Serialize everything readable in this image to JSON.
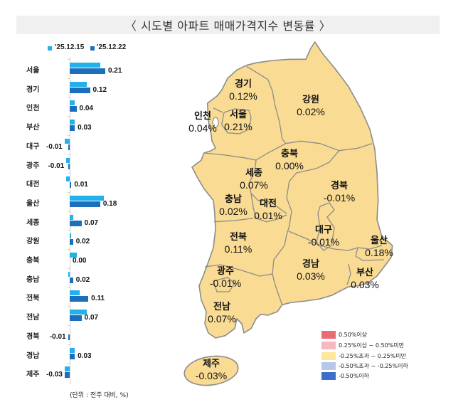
{
  "header": {
    "title": "〈 시도별 아파트 매매가격지수 변동률 〉"
  },
  "chart_data": {
    "type": "bar",
    "orientation": "horizontal",
    "title": "시도별 아파트 매매가격지수 변동률",
    "categories": [
      "서울",
      "경기",
      "인천",
      "부산",
      "대구",
      "광주",
      "대전",
      "울산",
      "세종",
      "강원",
      "충북",
      "충남",
      "전북",
      "전남",
      "경북",
      "경남",
      "제주"
    ],
    "series": [
      {
        "name": "'25.12.15",
        "color": "#22b1ea",
        "values": [
          0.18,
          0.1,
          0.03,
          0.03,
          -0.03,
          -0.02,
          -0.02,
          0.2,
          0.02,
          0.01,
          0.04,
          -0.01,
          0.06,
          0.1,
          0.0,
          0.03,
          -0.03
        ]
      },
      {
        "name": "'25.12.22",
        "color": "#1b6fbd",
        "values": [
          0.21,
          0.12,
          0.04,
          0.03,
          -0.01,
          -0.01,
          0.01,
          0.18,
          0.07,
          0.02,
          0.0,
          0.02,
          0.11,
          0.07,
          -0.01,
          0.03,
          -0.03
        ]
      }
    ],
    "value_labels": [
      "0.21",
      "0.12",
      "0.04",
      "0.03",
      "-0.01",
      "-0.01",
      "0.01",
      "0.18",
      "0.07",
      "0.02",
      "0.00",
      "0.02",
      "0.11",
      "0.07",
      "-0.01",
      "0.03",
      "-0.03"
    ],
    "xlabel": "",
    "ylabel": "",
    "xlim": [
      -0.05,
      0.25
    ],
    "grid": false,
    "legend_position": "top-left",
    "unit_note": "(단위 : 전주 대비, %)"
  },
  "map": {
    "fill_color": "#f9db93",
    "border_color": "#8c8c8c",
    "regions": [
      {
        "name": "경기",
        "value": "0.12%"
      },
      {
        "name": "강원",
        "value": "0.02%"
      },
      {
        "name": "인천",
        "value": "0.04%"
      },
      {
        "name": "서울",
        "value": "0.21%"
      },
      {
        "name": "충북",
        "value": "0.00%"
      },
      {
        "name": "세종",
        "value": "0.07%"
      },
      {
        "name": "경북",
        "value": "-0.01%"
      },
      {
        "name": "충남",
        "value": "0.02%"
      },
      {
        "name": "대전",
        "value": "0.01%"
      },
      {
        "name": "대구",
        "value": "-0.01%"
      },
      {
        "name": "전북",
        "value": "0.11%"
      },
      {
        "name": "울산",
        "value": "0.18%"
      },
      {
        "name": "경남",
        "value": "0.03%"
      },
      {
        "name": "광주",
        "value": "-0.01%"
      },
      {
        "name": "부산",
        "value": "0.03%"
      },
      {
        "name": "전남",
        "value": "0.07%"
      },
      {
        "name": "제주",
        "value": "-0.03%"
      }
    ],
    "legend": [
      {
        "label": "0.50%이상",
        "color": "#ec6a72"
      },
      {
        "label": "0.25%이상 ~ 0.50%미만",
        "color": "#f7b9c1"
      },
      {
        "label": "-0.25%초과 ~ 0.25%미만",
        "color": "#fde79b"
      },
      {
        "label": "-0.50%초과 ~ -0.25%이하",
        "color": "#b6c7ea"
      },
      {
        "label": "-0.50%이하",
        "color": "#3d6ec9"
      }
    ]
  }
}
